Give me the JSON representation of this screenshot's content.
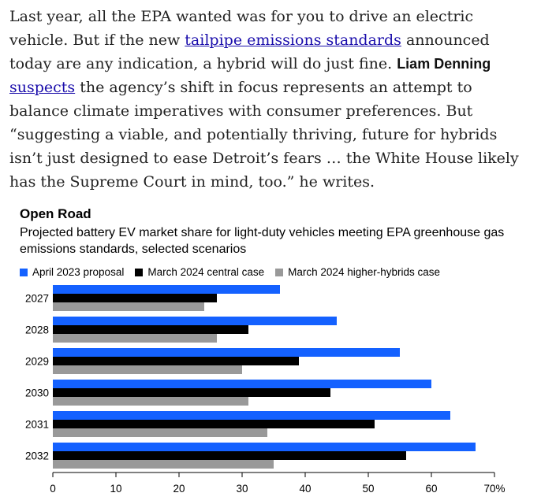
{
  "article": {
    "p1": "Last year, all the EPA wanted was for you to drive an electric vehicle. But if the new ",
    "link1": "tailpipe emissions standards",
    "p2": " announced today are any indication, a hybrid will do just fine. ",
    "author": "Liam Denning",
    "p3": " ",
    "link2": "suspects",
    "p4": " the agency’s shift in focus represents an attempt to balance climate imperatives with consumer preferences. But “suggesting a viable, and potentially thriving, future for hybrids isn’t just designed to ease Detroit’s fears … the White House likely has the Supreme Court in mind, too.” he writes."
  },
  "colors": {
    "blue": "#1461ff",
    "black": "#000000",
    "gray": "#999999"
  },
  "chart_data": {
    "type": "bar",
    "orientation": "horizontal",
    "title": "Open Road",
    "subtitle": "Projected battery EV market share for light-duty vehicles meeting EPA greenhouse gas emissions standards, selected scenarios",
    "categories": [
      "2027",
      "2028",
      "2029",
      "2030",
      "2031",
      "2032"
    ],
    "series": [
      {
        "name": "April 2023 proposal",
        "color": "#1461ff",
        "values": [
          36,
          45,
          55,
          60,
          63,
          67
        ]
      },
      {
        "name": "March 2024 central case",
        "color": "#000000",
        "values": [
          26,
          31,
          39,
          44,
          51,
          56
        ]
      },
      {
        "name": "March 2024 higher-hybrids case",
        "color": "#999999",
        "values": [
          24,
          26,
          30,
          31,
          34,
          35
        ]
      }
    ],
    "xlim": [
      0,
      70
    ],
    "xticks": [
      {
        "value": 0,
        "label": "0"
      },
      {
        "value": 10,
        "label": "10"
      },
      {
        "value": 20,
        "label": "20"
      },
      {
        "value": 30,
        "label": "30"
      },
      {
        "value": 40,
        "label": "40"
      },
      {
        "value": 50,
        "label": "50"
      },
      {
        "value": 60,
        "label": "60"
      },
      {
        "value": 70,
        "label": "70%"
      }
    ],
    "legend_position": "top-left"
  }
}
